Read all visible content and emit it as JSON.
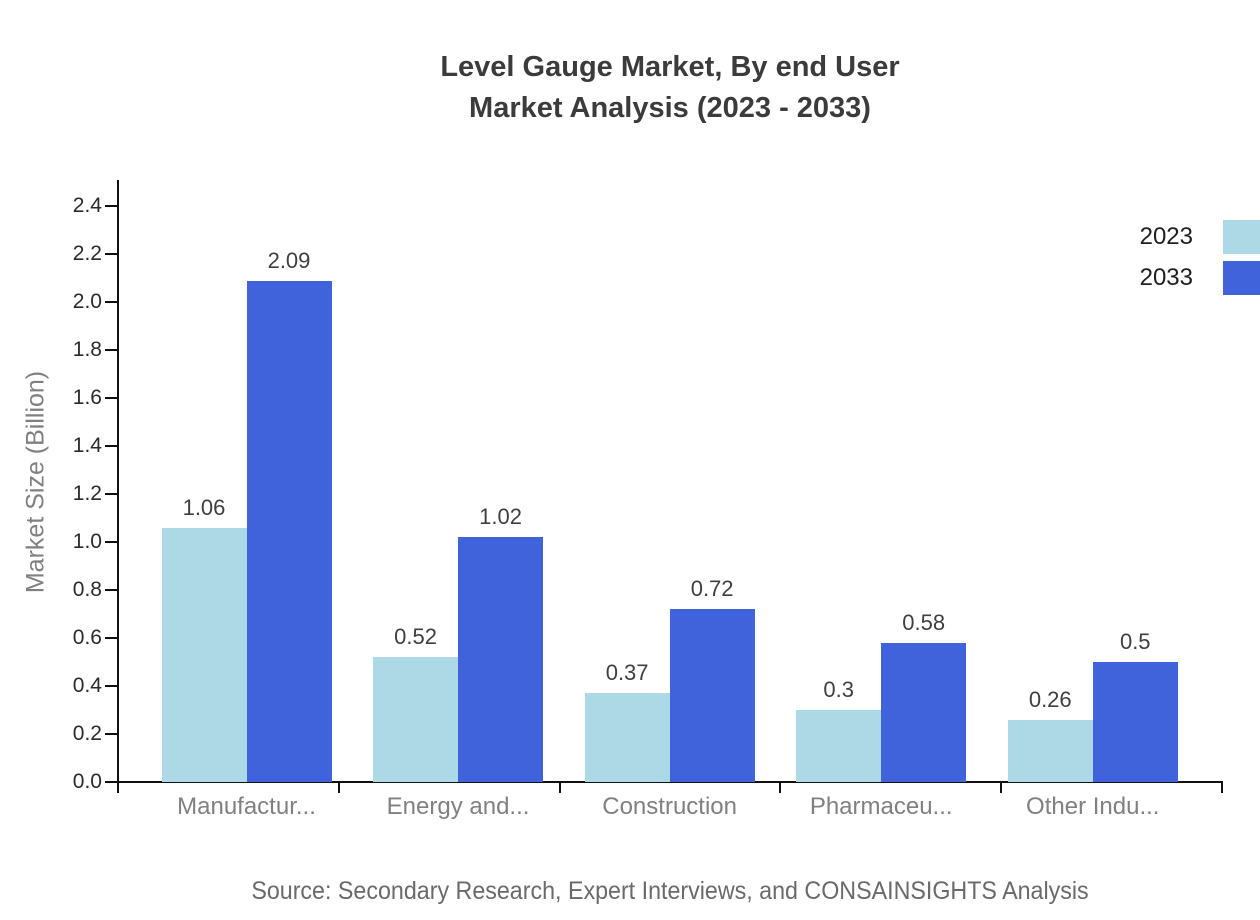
{
  "page": {
    "background": "#ffffff",
    "source_note": "Source: Secondary Research, Expert Interviews, and CONSAINSIGHTS Analysis"
  },
  "chart_data": {
    "type": "bar",
    "title": "Level Gauge Market, By end User Market Analysis (2023 - 2033)",
    "title_lines": [
      "Level Gauge Market, By end User",
      "Market Analysis (2023 - 2033)"
    ],
    "categories": [
      "Manufactur...",
      "Energy and...",
      "Construction",
      "Pharmaceu...",
      "Other Indu..."
    ],
    "series": [
      {
        "name": "2023",
        "color": "#ADD8E6",
        "values": [
          1.06,
          0.52,
          0.37,
          0.3,
          0.26
        ],
        "labels": [
          "1.06",
          "0.52",
          "0.37",
          "0.3",
          "0.26"
        ]
      },
      {
        "name": "2033",
        "color": "#4063DC",
        "values": [
          2.09,
          1.02,
          0.72,
          0.58,
          0.5
        ],
        "labels": [
          "2.09",
          "1.02",
          "0.72",
          "0.58",
          "0.5"
        ]
      }
    ],
    "xlabel": "",
    "ylabel": "Market Size (Billion)",
    "ylim": [
      0,
      2.51
    ],
    "yticks": [
      0.0,
      0.2,
      0.4,
      0.6,
      0.8,
      1.0,
      1.2,
      1.4,
      1.6,
      1.8,
      2.0,
      2.2,
      2.4
    ],
    "grid": false,
    "value_labels_shown": true,
    "legend": {
      "position": "top-right",
      "entries": [
        {
          "label": "2023",
          "color": "#ADD8E6"
        },
        {
          "label": "2033",
          "color": "#4063DC"
        }
      ]
    },
    "colors": {
      "series_2023": "#ADD8E6",
      "series_2033": "#4063DC",
      "axis": "#111111",
      "title_text": "#3b3b3b",
      "tick_label_text": "#2b2b2b",
      "category_label_text": "#808080",
      "value_label_text": "#3f3f3f",
      "source_text": "#6a6a6a"
    }
  }
}
